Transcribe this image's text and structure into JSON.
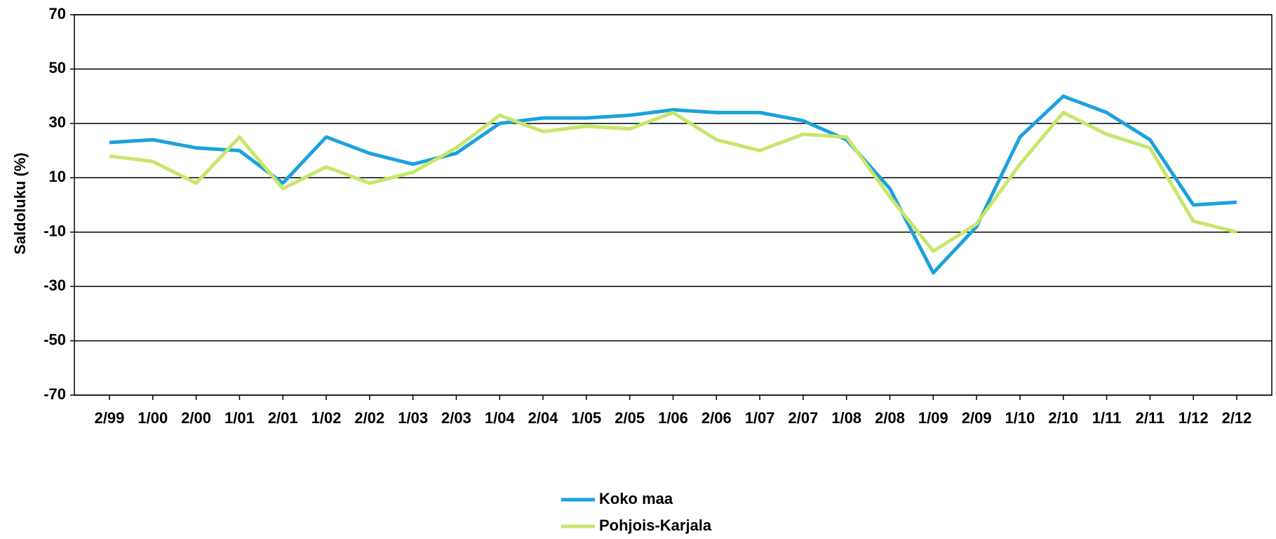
{
  "chart_data": {
    "type": "line",
    "y_label": "Saldoluku (%)",
    "categories": [
      "2/99",
      "1/00",
      "2/00",
      "1/01",
      "2/01",
      "1/02",
      "2/02",
      "1/03",
      "2/03",
      "1/04",
      "2/04",
      "1/05",
      "2/05",
      "1/06",
      "2/06",
      "1/07",
      "2/07",
      "1/08",
      "2/08",
      "1/09",
      "2/09",
      "1/10",
      "2/10",
      "1/11",
      "2/11",
      "1/12",
      "2/12"
    ],
    "series": [
      {
        "name": "Koko maa",
        "color": "#1ba2dc",
        "values": [
          23,
          24,
          21,
          20,
          8,
          25,
          19,
          15,
          19,
          30,
          32,
          32,
          33,
          35,
          34,
          34,
          31,
          24,
          6,
          -25,
          -8,
          25,
          40,
          34,
          24,
          0,
          1
        ]
      },
      {
        "name": "Pohjois-Karjala",
        "color": "#c8e66b",
        "values": [
          18,
          16,
          8,
          25,
          6,
          14,
          8,
          12,
          21,
          33,
          27,
          29,
          28,
          34,
          24,
          20,
          26,
          25,
          3,
          -17,
          -7,
          15,
          34,
          26,
          21,
          -6,
          -10
        ]
      }
    ],
    "ylim": [
      -70,
      70
    ],
    "yticks": [
      70,
      50,
      30,
      10,
      -10,
      -30,
      -50,
      -70
    ],
    "grid": true
  }
}
